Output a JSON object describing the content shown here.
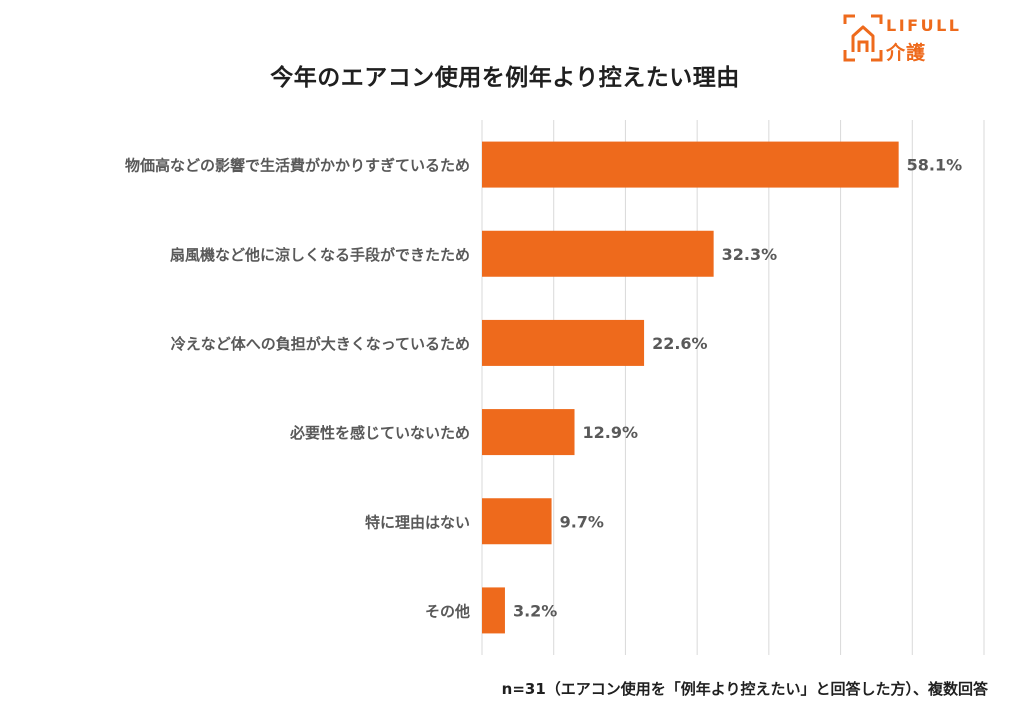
{
  "brand": {
    "name": "LIFULL",
    "sub": "介護",
    "color": "#ee6a1c"
  },
  "footnote": "n=31（エアコン使用を「例年より控えたい」と回答した方）、複数回答",
  "chart_data": {
    "type": "bar",
    "orientation": "horizontal",
    "title": "今年のエアコン使用を例年より控えたい理由",
    "categories": [
      "物価高などの影響で生活費がかかりすぎているため",
      "扇風機など他に涼しくなる手段ができたため",
      "冷えなど体への負担が大きくなっているため",
      "必要性を感じていないため",
      "特に理由はない",
      "その他"
    ],
    "values": [
      58.1,
      32.3,
      22.6,
      12.9,
      9.7,
      3.2
    ],
    "data_labels": [
      "58.1%",
      "32.3%",
      "22.6%",
      "12.9%",
      "9.7%",
      "3.2%"
    ],
    "xlim": [
      0,
      70
    ],
    "grid": true,
    "bar_color": "#ee6a1c",
    "gridline_color": "#d9d9d9",
    "label_color": "#595959"
  }
}
